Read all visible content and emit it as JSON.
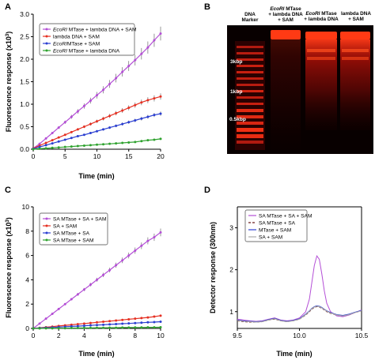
{
  "chart_data": [
    {
      "panel": "A",
      "type": "line",
      "xlabel": "Time (min)",
      "ylabel": "Fluorescence response (x10",
      "ylabel_sup": "3",
      "ylabel_end": ")",
      "xlim": [
        0,
        20
      ],
      "ylim": [
        0,
        3
      ],
      "xticks": [
        0,
        5,
        10,
        15,
        20
      ],
      "yticks": [
        0.0,
        0.5,
        1.0,
        1.5,
        2.0,
        2.5,
        3.0
      ],
      "ytick_labels": [
        "0.0",
        "0.5",
        "1.0",
        "1.5",
        "2.0",
        "2.5",
        "3.0"
      ],
      "legend_position": "top-left",
      "series": [
        {
          "name_italic": "EcoRI",
          "name_rest": " MTase + lambda DNA + SAM",
          "color": "#b44fd6",
          "x": [
            0,
            1,
            2,
            3,
            4,
            5,
            6,
            7,
            8,
            9,
            10,
            11,
            12,
            13,
            14,
            15,
            16,
            17,
            18,
            19,
            20
          ],
          "values": [
            0.02,
            0.12,
            0.24,
            0.36,
            0.48,
            0.6,
            0.72,
            0.84,
            0.96,
            1.08,
            1.2,
            1.32,
            1.45,
            1.58,
            1.72,
            1.85,
            1.98,
            2.12,
            2.26,
            2.42,
            2.57
          ]
        },
        {
          "name_italic": "",
          "name_rest": "lambda DNA + SAM",
          "color": "#e53022",
          "x": [
            0,
            1,
            2,
            3,
            4,
            5,
            6,
            7,
            8,
            9,
            10,
            11,
            12,
            13,
            14,
            15,
            16,
            17,
            18,
            19,
            20
          ],
          "values": [
            0.02,
            0.08,
            0.14,
            0.2,
            0.26,
            0.32,
            0.38,
            0.44,
            0.5,
            0.56,
            0.62,
            0.68,
            0.74,
            0.8,
            0.86,
            0.92,
            0.98,
            1.04,
            1.09,
            1.13,
            1.17
          ]
        },
        {
          "name_italic": "EcoRI",
          "name_rest": "MTase + SAM",
          "color": "#2b3fd1",
          "x": [
            0,
            1,
            2,
            3,
            4,
            5,
            6,
            7,
            8,
            9,
            10,
            11,
            12,
            13,
            14,
            15,
            16,
            17,
            18,
            19,
            20
          ],
          "values": [
            0.01,
            0.05,
            0.09,
            0.13,
            0.17,
            0.21,
            0.25,
            0.29,
            0.32,
            0.36,
            0.4,
            0.44,
            0.48,
            0.52,
            0.56,
            0.6,
            0.64,
            0.68,
            0.72,
            0.76,
            0.79
          ]
        },
        {
          "name_italic": "EcoRI",
          "name_rest": " MTase + lambda DNA",
          "color": "#2fa22f",
          "x": [
            0,
            1,
            2,
            3,
            4,
            5,
            6,
            7,
            8,
            9,
            10,
            11,
            12,
            13,
            14,
            15,
            16,
            17,
            18,
            19,
            20
          ],
          "values": [
            0.0,
            0.01,
            0.02,
            0.03,
            0.04,
            0.05,
            0.06,
            0.07,
            0.08,
            0.09,
            0.1,
            0.11,
            0.12,
            0.13,
            0.14,
            0.15,
            0.16,
            0.18,
            0.2,
            0.21,
            0.23
          ]
        }
      ]
    },
    {
      "panel": "C",
      "type": "line",
      "xlabel": "Time (min)",
      "ylabel": "Fluorescence response (x10",
      "ylabel_sup": "3",
      "ylabel_end": ")",
      "xlim": [
        0,
        10
      ],
      "ylim": [
        0,
        10
      ],
      "xticks": [
        0,
        2,
        4,
        6,
        8,
        10
      ],
      "yticks": [
        0,
        2,
        4,
        6,
        8,
        10
      ],
      "ytick_labels": [
        "0",
        "2",
        "4",
        "6",
        "8",
        "10"
      ],
      "legend_position": "top-left",
      "series": [
        {
          "name_italic": "",
          "name_rest": "SA MTase + SA + SAM",
          "color": "#b44fd6",
          "x": [
            0,
            0.5,
            1,
            1.5,
            2,
            2.5,
            3,
            3.5,
            4,
            4.5,
            5,
            5.5,
            6,
            6.5,
            7,
            7.5,
            8,
            8.5,
            9,
            9.5,
            10
          ],
          "values": [
            0.0,
            0.4,
            0.8,
            1.2,
            1.6,
            2.0,
            2.4,
            2.8,
            3.2,
            3.6,
            4.0,
            4.4,
            4.8,
            5.2,
            5.6,
            6.0,
            6.4,
            6.8,
            7.2,
            7.5,
            7.9
          ]
        },
        {
          "name_italic": "",
          "name_rest": "SA + SAM",
          "color": "#e53022",
          "x": [
            0,
            0.5,
            1,
            1.5,
            2,
            2.5,
            3,
            3.5,
            4,
            4.5,
            5,
            5.5,
            6,
            6.5,
            7,
            7.5,
            8,
            8.5,
            9,
            9.5,
            10
          ],
          "values": [
            0.0,
            0.05,
            0.1,
            0.15,
            0.2,
            0.25,
            0.3,
            0.35,
            0.4,
            0.45,
            0.5,
            0.55,
            0.6,
            0.65,
            0.7,
            0.75,
            0.8,
            0.85,
            0.9,
            0.97,
            1.05
          ]
        },
        {
          "name_italic": "",
          "name_rest": "SA MTase + SA",
          "color": "#2b3fd1",
          "x": [
            0,
            0.5,
            1,
            1.5,
            2,
            2.5,
            3,
            3.5,
            4,
            4.5,
            5,
            5.5,
            6,
            6.5,
            7,
            7.5,
            8,
            8.5,
            9,
            9.5,
            10
          ],
          "values": [
            0.0,
            0.03,
            0.06,
            0.08,
            0.11,
            0.14,
            0.17,
            0.19,
            0.22,
            0.25,
            0.28,
            0.3,
            0.33,
            0.36,
            0.39,
            0.41,
            0.44,
            0.47,
            0.5,
            0.52,
            0.55
          ]
        },
        {
          "name_italic": "",
          "name_rest": "SA MTase + SAM",
          "color": "#2fa22f",
          "x": [
            0,
            0.5,
            1,
            1.5,
            2,
            2.5,
            3,
            3.5,
            4,
            4.5,
            5,
            5.5,
            6,
            6.5,
            7,
            7.5,
            8,
            8.5,
            9,
            9.5,
            10
          ],
          "values": [
            0.0,
            0.0,
            0.01,
            0.01,
            0.02,
            0.02,
            0.03,
            0.03,
            0.04,
            0.04,
            0.05,
            0.05,
            0.06,
            0.06,
            0.07,
            0.07,
            0.08,
            0.08,
            0.09,
            0.09,
            0.1
          ]
        }
      ]
    },
    {
      "panel": "D",
      "type": "line",
      "xlabel": "Time (min)",
      "ylabel": "Detector response (300nm)",
      "xlim": [
        9.5,
        10.5
      ],
      "ylim": [
        0.6,
        3.5
      ],
      "xticks": [
        9.5,
        10.0,
        10.5
      ],
      "xtick_labels": [
        "9.5",
        "10.0",
        "10.5"
      ],
      "yticks": [
        1,
        2,
        3
      ],
      "ytick_labels": [
        "1",
        "2",
        "3"
      ],
      "legend_position": "top-left",
      "series": [
        {
          "name": "SA MTase + SA + SAM",
          "color": "#b44fd6",
          "dash": "",
          "x": [
            9.5,
            9.55,
            9.6,
            9.65,
            9.7,
            9.75,
            9.8,
            9.85,
            9.9,
            9.95,
            10.0,
            10.05,
            10.08,
            10.1,
            10.12,
            10.14,
            10.16,
            10.18,
            10.2,
            10.22,
            10.25,
            10.3,
            10.35,
            10.4,
            10.45,
            10.5
          ],
          "values": [
            0.82,
            0.8,
            0.78,
            0.77,
            0.78,
            0.82,
            0.85,
            0.8,
            0.78,
            0.8,
            0.85,
            1.0,
            1.3,
            1.7,
            2.1,
            2.33,
            2.25,
            1.9,
            1.5,
            1.2,
            1.0,
            0.9,
            0.88,
            0.92,
            0.98,
            1.04
          ]
        },
        {
          "name": "SA MTase + SA",
          "color": "#6b1f1f",
          "dash": "3,2",
          "x": [
            9.5,
            9.55,
            9.6,
            9.65,
            9.7,
            9.75,
            9.8,
            9.85,
            9.9,
            9.95,
            10.0,
            10.05,
            10.08,
            10.1,
            10.12,
            10.14,
            10.16,
            10.18,
            10.2,
            10.22,
            10.25,
            10.3,
            10.35,
            10.4,
            10.45,
            10.5
          ],
          "values": [
            0.78,
            0.76,
            0.75,
            0.75,
            0.76,
            0.8,
            0.82,
            0.78,
            0.76,
            0.78,
            0.82,
            0.92,
            1.0,
            1.06,
            1.1,
            1.12,
            1.11,
            1.08,
            1.04,
            1.0,
            0.96,
            0.92,
            0.9,
            0.93,
            0.98,
            1.02
          ]
        },
        {
          "name": "MTase + SAM",
          "color": "#2b3fd1",
          "dash": "",
          "x": [
            9.5,
            9.55,
            9.6,
            9.65,
            9.7,
            9.75,
            9.8,
            9.85,
            9.9,
            9.95,
            10.0,
            10.05,
            10.08,
            10.1,
            10.12,
            10.14,
            10.16,
            10.18,
            10.2,
            10.22,
            10.25,
            10.3,
            10.35,
            10.4,
            10.45,
            10.5
          ],
          "values": [
            0.8,
            0.78,
            0.77,
            0.76,
            0.77,
            0.81,
            0.84,
            0.79,
            0.77,
            0.79,
            0.83,
            0.94,
            1.02,
            1.08,
            1.12,
            1.14,
            1.13,
            1.1,
            1.06,
            1.02,
            0.98,
            0.93,
            0.91,
            0.94,
            0.99,
            1.03
          ]
        },
        {
          "name": "SA + SAM",
          "color": "#aaaaaa",
          "dash": "",
          "x": [
            9.5,
            9.55,
            9.6,
            9.65,
            9.7,
            9.75,
            9.8,
            9.85,
            9.9,
            9.95,
            10.0,
            10.05,
            10.08,
            10.1,
            10.12,
            10.14,
            10.16,
            10.18,
            10.2,
            10.22,
            10.25,
            10.3,
            10.35,
            10.4,
            10.45,
            10.5
          ],
          "values": [
            0.79,
            0.77,
            0.76,
            0.75,
            0.76,
            0.8,
            0.83,
            0.78,
            0.76,
            0.78,
            0.82,
            0.93,
            1.01,
            1.07,
            1.11,
            1.13,
            1.12,
            1.09,
            1.05,
            1.01,
            0.97,
            0.92,
            0.9,
            0.93,
            0.98,
            1.02
          ]
        }
      ]
    }
  ],
  "panel_labels": {
    "a": "A",
    "b": "B",
    "c": "C",
    "d": "D"
  },
  "gel": {
    "lanes": [
      {
        "line1_italic": "",
        "line1_rest": "DNA",
        "line2": "Marker",
        "line3": ""
      },
      {
        "line1_italic": "EcoRI",
        "line1_rest": " MTase",
        "line2": "+ lambda DNA",
        "line3": "+ SAM"
      },
      {
        "line1_italic": "EcoRI",
        "line1_rest": " MTase",
        "line2": "+ lambda DNA",
        "line3": ""
      },
      {
        "line1_italic": "",
        "line1_rest": "lambda DNA",
        "line2": "+ SAM",
        "line3": ""
      }
    ],
    "markers": [
      "3kbp",
      "1kbp",
      "0.5kbp"
    ]
  }
}
